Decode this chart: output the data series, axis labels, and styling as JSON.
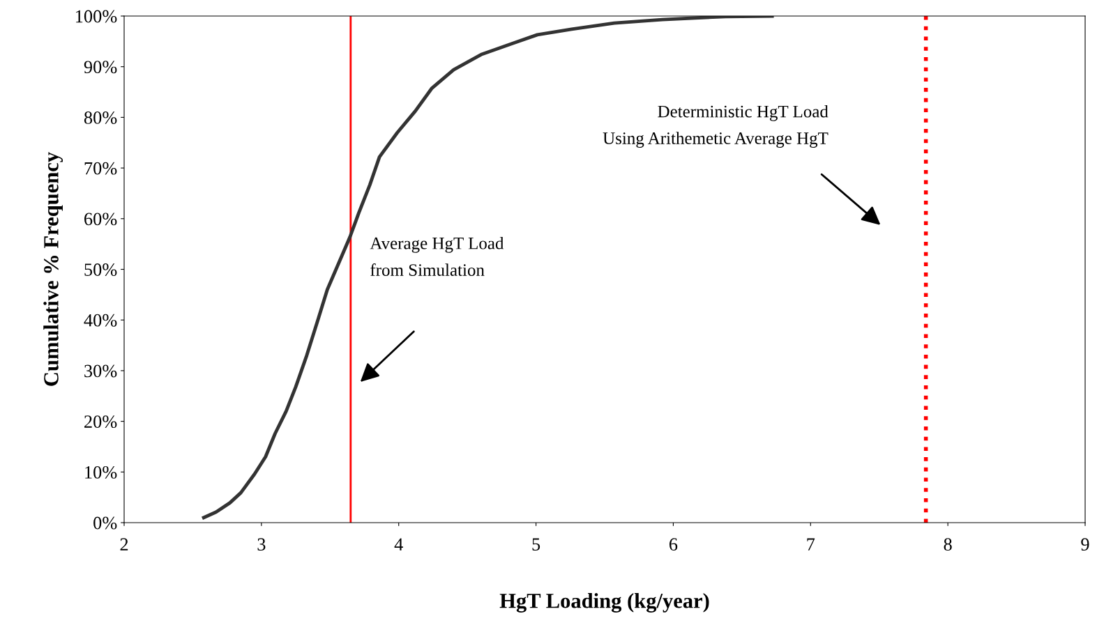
{
  "chart_data": {
    "type": "line",
    "xlabel": "HgT Loading (kg/year)",
    "ylabel": "Cumulative % Frequency",
    "series": [
      {
        "color": "#333333",
        "x": [
          2.58,
          2.67,
          2.77,
          2.85,
          2.95,
          3.03,
          3.1,
          3.18,
          3.25,
          3.33,
          3.41,
          3.48,
          3.58,
          3.645,
          3.71,
          3.79,
          3.86,
          3.99,
          4.12,
          4.24,
          4.4,
          4.6,
          4.83,
          5.01,
          5.26,
          5.57,
          5.92,
          6.38,
          6.72
        ],
        "values": [
          1,
          2.1,
          3.9,
          5.9,
          9.6,
          13,
          17.6,
          22,
          26.8,
          33,
          39.9,
          46,
          52.3,
          56.4,
          61.2,
          66.7,
          72.2,
          77,
          81.2,
          85.7,
          89.4,
          92.4,
          94.6,
          96.3,
          97.4,
          98.6,
          99.3,
          99.9,
          100
        ]
      }
    ],
    "xlim": [
      2,
      9
    ],
    "xticks": [
      2,
      3,
      4,
      5,
      6,
      7,
      8,
      9
    ],
    "ylim": [
      0,
      100
    ],
    "yticks": [
      {
        "value": 0,
        "label": "0%"
      },
      {
        "value": 10,
        "label": "10%"
      },
      {
        "value": 20,
        "label": "20%"
      },
      {
        "value": 30,
        "label": "30%"
      },
      {
        "value": 40,
        "label": "40%"
      },
      {
        "value": 50,
        "label": "50%"
      },
      {
        "value": 60,
        "label": "60%"
      },
      {
        "value": 70,
        "label": "70%"
      },
      {
        "value": 80,
        "label": "80%"
      },
      {
        "value": 90,
        "label": "90%"
      },
      {
        "value": 100,
        "label": "100%"
      }
    ],
    "ref_lines": [
      {
        "axis": "x",
        "value": 3.65,
        "color": "#ff0000",
        "line_style": "solid"
      },
      {
        "axis": "x",
        "value": 7.84,
        "color": "#ff0000",
        "line_style": "dotted"
      }
    ],
    "annotations": [
      "Average HgT Load\nfrom Simulation",
      "Deterministic HgT Load\nUsing Arithemetic Average HgT"
    ],
    "grid": false,
    "legend": false,
    "marker": "none",
    "line_style": "solid"
  }
}
